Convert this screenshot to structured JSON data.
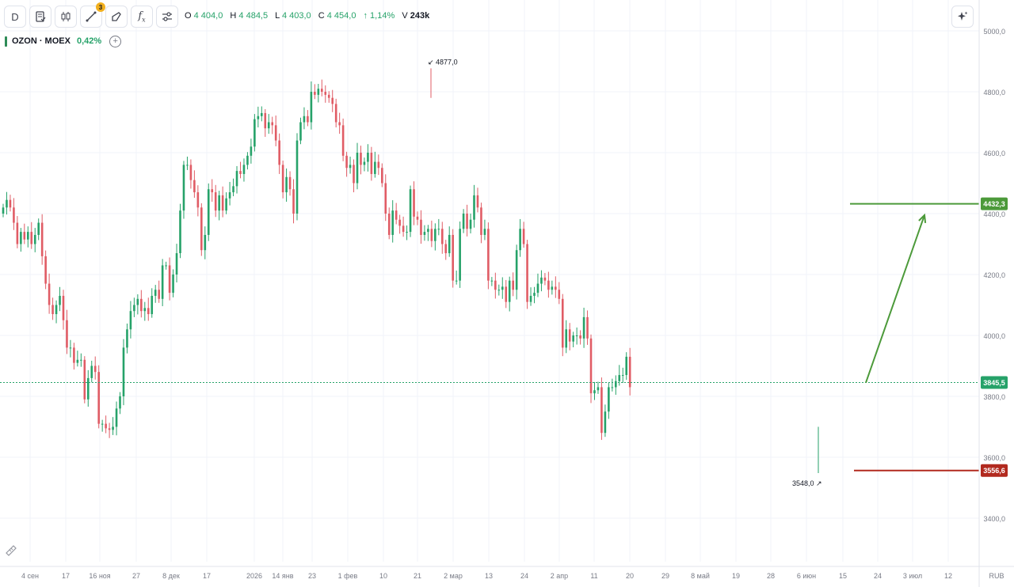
{
  "toolbar": {
    "interval_label": "D",
    "drawings_badge": "3",
    "fx_label": "f",
    "fx_sub": "x"
  },
  "ohlc": {
    "o_label": "O",
    "o_value": "4 404,0",
    "h_label": "H",
    "h_value": "4 484,5",
    "l_label": "L",
    "l_value": "4 403,0",
    "c_label": "C",
    "c_value": "4 454,0",
    "change": "↑ 1,14%",
    "v_label": "V",
    "v_value": "243k"
  },
  "symbol": {
    "name": "OZON · MOEX",
    "change": "0,42%",
    "add_label": "+"
  },
  "colors": {
    "up": "#26a269",
    "down": "#e05c65",
    "target_line": "#4c9a3a",
    "stop_line": "#b22a1f",
    "grid": "#f0f3fa",
    "axis_text": "#787b86"
  },
  "chart_data": {
    "type": "candlestick",
    "currency": "RUB",
    "ylim": [
      3250,
      5030
    ],
    "yticks": [
      "5000,0",
      "4800,0",
      "4600,0",
      "4400,0",
      "4200,0",
      "4000,0",
      "3800,0",
      "3600,0",
      "3400,0"
    ],
    "ytick_values": [
      5000,
      4800,
      4600,
      4400,
      4200,
      4000,
      3800,
      3600,
      3400
    ],
    "xticks": [
      "4 сен",
      "17",
      "16 ноя",
      "27",
      "8 дек",
      "17",
      "2026",
      "14 янв",
      "23",
      "1 фев",
      "10",
      "21",
      "2 мар",
      "13",
      "24",
      "2 апр",
      "11",
      "20",
      "29",
      "8 май",
      "19",
      "28",
      "6 июн",
      "15",
      "24",
      "3 июл",
      "12"
    ],
    "xaxis_unit_label": "RUB",
    "high_marker": {
      "label": "4877,0",
      "value": 4877
    },
    "low_marker": {
      "label": "3548,0",
      "value": 3548
    },
    "current_price": {
      "label": "3845,5",
      "value": 3845.5
    },
    "target_level": {
      "label": "4432,3",
      "value": 4432.3
    },
    "stop_level": {
      "label": "3556,6",
      "value": 3556.6
    },
    "forecast_arrow": {
      "from_value": 3845,
      "to_value": 4395
    },
    "closes": [
      4420,
      4445,
      4420,
      4370,
      4300,
      4340,
      4315,
      4340,
      4300,
      4330,
      4370,
      4260,
      4170,
      4100,
      4070,
      4100,
      4130,
      4050,
      3960,
      3960,
      3910,
      3920,
      3920,
      3790,
      3860,
      3900,
      3880,
      3710,
      3710,
      3695,
      3690,
      3700,
      3760,
      3800,
      3960,
      4020,
      4080,
      4100,
      4120,
      4080,
      4090,
      4070,
      4130,
      4150,
      4120,
      4230,
      4230,
      4140,
      4200,
      4270,
      4410,
      4560,
      4560,
      4510,
      4470,
      4420,
      4280,
      4330,
      4480,
      4470,
      4410,
      4460,
      4410,
      4450,
      4470,
      4490,
      4540,
      4530,
      4560,
      4590,
      4620,
      4710,
      4720,
      4730,
      4680,
      4700,
      4690,
      4640,
      4560,
      4470,
      4520,
      4480,
      4400,
      4640,
      4700,
      4720,
      4700,
      4800,
      4790,
      4810,
      4800,
      4790,
      4780,
      4760,
      4700,
      4690,
      4590,
      4550,
      4560,
      4500,
      4600,
      4560,
      4570,
      4600,
      4530,
      4570,
      4550,
      4500,
      4400,
      4330,
      4410,
      4380,
      4360,
      4340,
      4340,
      4480,
      4390,
      4380,
      4330,
      4340,
      4350,
      4310,
      4350,
      4350,
      4300,
      4270,
      4330,
      4180,
      4180,
      4350,
      4400,
      4350,
      4380,
      4460,
      4420,
      4330,
      4350,
      4180,
      4180,
      4150,
      4150,
      4160,
      4110,
      4180,
      4150,
      4280,
      4350,
      4300,
      4110,
      4130,
      4140,
      4170,
      4190,
      4180,
      4150,
      4160,
      4150,
      4120,
      3960,
      4020,
      3980,
      4000,
      4000,
      3990,
      4060,
      3990,
      3810,
      3820,
      3830,
      3680,
      3750,
      3830,
      3830,
      3850,
      3870,
      3870,
      3930,
      3830
    ]
  }
}
